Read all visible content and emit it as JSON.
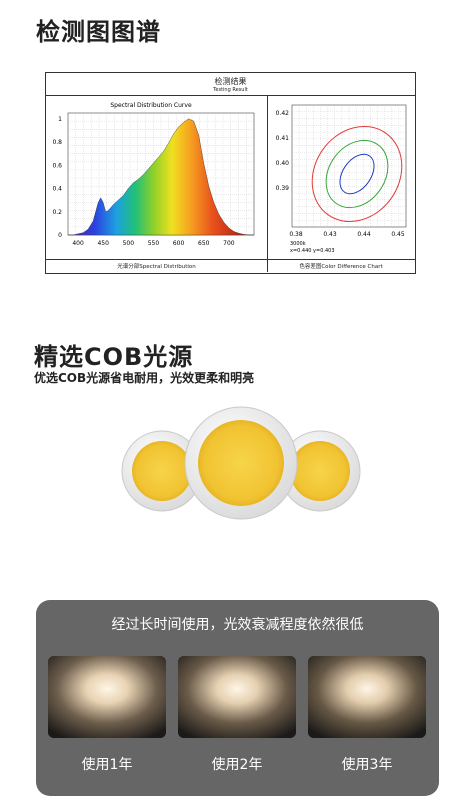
{
  "header": {
    "title": "检测图图谱"
  },
  "test_panel": {
    "title": "检测结果",
    "subtitle": "Testing Result",
    "left_footer": "光谱分部Spectral Distribution",
    "right_footer": "色容差图Color Difference Chart"
  },
  "chart_data": [
    {
      "type": "area",
      "title": "Spectral Distribution Curve",
      "x_ticks": [
        400,
        450,
        500,
        550,
        600,
        650,
        700
      ],
      "y_ticks": [
        "0",
        "0.2",
        "0.4",
        "0.6",
        "0.8",
        "1"
      ],
      "xlim": [
        380,
        750
      ],
      "ylim": [
        0,
        1.05
      ],
      "grid": true,
      "x": [
        380,
        390,
        400,
        410,
        420,
        430,
        440,
        445,
        450,
        455,
        460,
        470,
        480,
        490,
        500,
        510,
        520,
        530,
        540,
        550,
        560,
        570,
        580,
        590,
        600,
        610,
        620,
        630,
        640,
        650,
        660,
        670,
        680,
        690,
        700,
        710,
        720,
        730,
        740,
        750
      ],
      "y": [
        0.0,
        0.0,
        0.01,
        0.02,
        0.05,
        0.12,
        0.28,
        0.32,
        0.28,
        0.2,
        0.21,
        0.26,
        0.3,
        0.34,
        0.4,
        0.45,
        0.48,
        0.52,
        0.57,
        0.62,
        0.67,
        0.72,
        0.79,
        0.87,
        0.93,
        0.97,
        1.0,
        0.98,
        0.86,
        0.62,
        0.42,
        0.28,
        0.18,
        0.11,
        0.06,
        0.03,
        0.015,
        0.005,
        0.0,
        0.0
      ]
    },
    {
      "type": "scatter",
      "title": "",
      "x_ticks": [
        "0.38",
        "0.43",
        "0.44",
        "0.45"
      ],
      "y_ticks": [
        "0.42",
        "0.41",
        "0.40",
        "0.39"
      ],
      "annotation_cct": "3000k",
      "annotation_xy": "x=0.440 y=0.403",
      "center": {
        "x": 0.44,
        "y": 0.403
      },
      "ellipses": [
        {
          "level": 1,
          "color": "#1f3fbf"
        },
        {
          "level": 2,
          "color": "#3aa63a"
        },
        {
          "level": 3,
          "color": "#e23a3a"
        }
      ]
    }
  ],
  "cob_section": {
    "title": "精选COB光源",
    "subtitle": "优选COB光源省电耐用，光效更柔和明亮"
  },
  "decay_section": {
    "caption": "经过长时间使用，光效衰减程度依然很低",
    "labels": [
      "使用1年",
      "使用2年",
      "使用3年"
    ]
  }
}
